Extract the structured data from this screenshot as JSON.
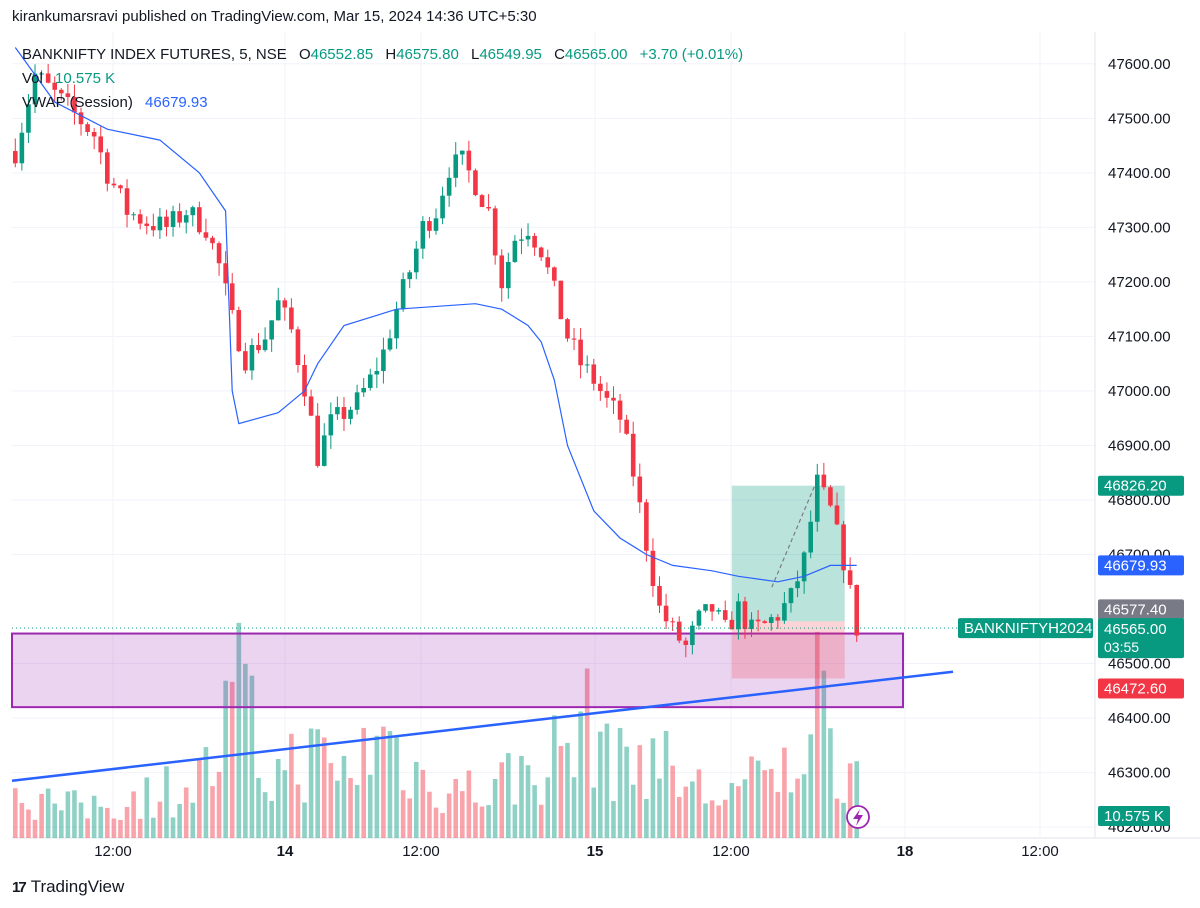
{
  "header": {
    "publisher": "kirankumarsravi published on TradingView.com, Mar 15, 2024 14:36 UTC+5:30"
  },
  "legend": {
    "symbol": "BANKNIFTY INDEX FUTURES, 5, NSE",
    "o_label": "O",
    "o": "46552.85",
    "h_label": "H",
    "h": "46575.80",
    "l_label": "L",
    "l": "46549.95",
    "c_label": "C",
    "c": "46565.00",
    "change": "+3.70 (+0.01%)",
    "vol_label": "Vol",
    "vol": "10.575 K",
    "vwap_label": "VWAP (Session)",
    "vwap": "46679.93"
  },
  "footer": {
    "brand": "TradingView"
  },
  "colors": {
    "up": "#089981",
    "down": "#f23645",
    "vwap": "#2962ff",
    "zone": "#9c27b0",
    "trend": "#2962ff"
  },
  "chart_data": {
    "type": "candlestick",
    "y_ticks": [
      "47600.00",
      "47500.00",
      "47400.00",
      "47300.00",
      "47200.00",
      "47100.00",
      "47000.00",
      "46900.00",
      "46800.00",
      "46700.00",
      "46500.00",
      "46400.00",
      "46300.00",
      "46200.00"
    ],
    "x_ticks": [
      "12:00",
      "14",
      "12:00",
      "15",
      "12:00",
      "18",
      "12:00"
    ],
    "ylim": [
      46180,
      47640
    ],
    "price_points": [
      [
        0,
        47440
      ],
      [
        3,
        47580
      ],
      [
        8,
        47520
      ],
      [
        12,
        47470
      ],
      [
        14,
        47400
      ],
      [
        17,
        47330
      ],
      [
        20,
        47310
      ],
      [
        23,
        47300
      ],
      [
        26,
        47330
      ],
      [
        29,
        47300
      ],
      [
        31,
        47230
      ],
      [
        33,
        47130
      ],
      [
        35,
        47060
      ],
      [
        38,
        47100
      ],
      [
        40,
        47160
      ],
      [
        42,
        47110
      ],
      [
        44,
        47010
      ],
      [
        46,
        46880
      ],
      [
        48,
        46940
      ],
      [
        50,
        46960
      ],
      [
        52,
        46980
      ],
      [
        54,
        47020
      ],
      [
        56,
        47070
      ],
      [
        58,
        47150
      ],
      [
        60,
        47220
      ],
      [
        62,
        47300
      ],
      [
        64,
        47330
      ],
      [
        66,
        47410
      ],
      [
        68,
        47420
      ],
      [
        70,
        47380
      ],
      [
        72,
        47330
      ],
      [
        74,
        47200
      ],
      [
        76,
        47280
      ],
      [
        78,
        47300
      ],
      [
        80,
        47260
      ],
      [
        82,
        47180
      ],
      [
        84,
        47100
      ],
      [
        86,
        47050
      ],
      [
        88,
        47020
      ],
      [
        90,
        46980
      ],
      [
        92,
        46950
      ],
      [
        94,
        46850
      ],
      [
        96,
        46720
      ],
      [
        98,
        46600
      ],
      [
        100,
        46560
      ],
      [
        102,
        46530
      ],
      [
        104,
        46580
      ],
      [
        106,
        46600
      ],
      [
        108,
        46560
      ],
      [
        110,
        46600
      ],
      [
        112,
        46560
      ],
      [
        114,
        46570
      ],
      [
        116,
        46590
      ],
      [
        118,
        46620
      ],
      [
        120,
        46690
      ],
      [
        122,
        46830
      ],
      [
        124,
        46780
      ],
      [
        126,
        46690
      ],
      [
        128,
        46565
      ]
    ],
    "vwap_points": [
      [
        0,
        47630
      ],
      [
        6,
        47530
      ],
      [
        14,
        47480
      ],
      [
        22,
        47460
      ],
      [
        28,
        47400
      ],
      [
        32,
        47330
      ],
      [
        33,
        47000
      ],
      [
        34,
        46940
      ],
      [
        40,
        46960
      ],
      [
        44,
        47000
      ],
      [
        46,
        47050
      ],
      [
        50,
        47120
      ],
      [
        58,
        47150
      ],
      [
        70,
        47160
      ],
      [
        74,
        47150
      ],
      [
        78,
        47120
      ],
      [
        80,
        47090
      ],
      [
        82,
        47020
      ],
      [
        84,
        46900
      ],
      [
        88,
        46780
      ],
      [
        92,
        46730
      ],
      [
        96,
        46700
      ],
      [
        100,
        46680
      ],
      [
        106,
        46670
      ],
      [
        110,
        46660
      ],
      [
        116,
        46650
      ],
      [
        120,
        46660
      ],
      [
        124,
        46680
      ],
      [
        128,
        46680
      ]
    ],
    "volume_points": [
      [
        0,
        0.28
      ],
      [
        8,
        0.18
      ],
      [
        16,
        0.22
      ],
      [
        24,
        0.3
      ],
      [
        30,
        0.4
      ],
      [
        34,
        0.9
      ],
      [
        38,
        0.35
      ],
      [
        44,
        0.5
      ],
      [
        50,
        0.38
      ],
      [
        56,
        0.62
      ],
      [
        62,
        0.35
      ],
      [
        70,
        0.28
      ],
      [
        78,
        0.4
      ],
      [
        84,
        0.55
      ],
      [
        88,
        0.7
      ],
      [
        92,
        0.42
      ],
      [
        96,
        0.55
      ],
      [
        100,
        0.38
      ],
      [
        106,
        0.25
      ],
      [
        112,
        0.32
      ],
      [
        118,
        0.4
      ],
      [
        122,
        0.95
      ],
      [
        124,
        0.5
      ],
      [
        128,
        0.45
      ]
    ],
    "position": {
      "entry": 46577.4,
      "target": 46826.2,
      "stop": 46472.6
    },
    "zone": {
      "top": 46555,
      "bottom": 46420
    },
    "trendline": [
      46285,
      46485
    ],
    "price_labels": {
      "target": "46826.20",
      "vwap": "46679.93",
      "entry": "46577.40",
      "last": "46565.00",
      "countdown": "03:55",
      "stop": "46472.60",
      "volume": "10.575 K",
      "symbol": "BANKNIFTYH2024",
      "hidden_tick": "46500.00"
    }
  }
}
